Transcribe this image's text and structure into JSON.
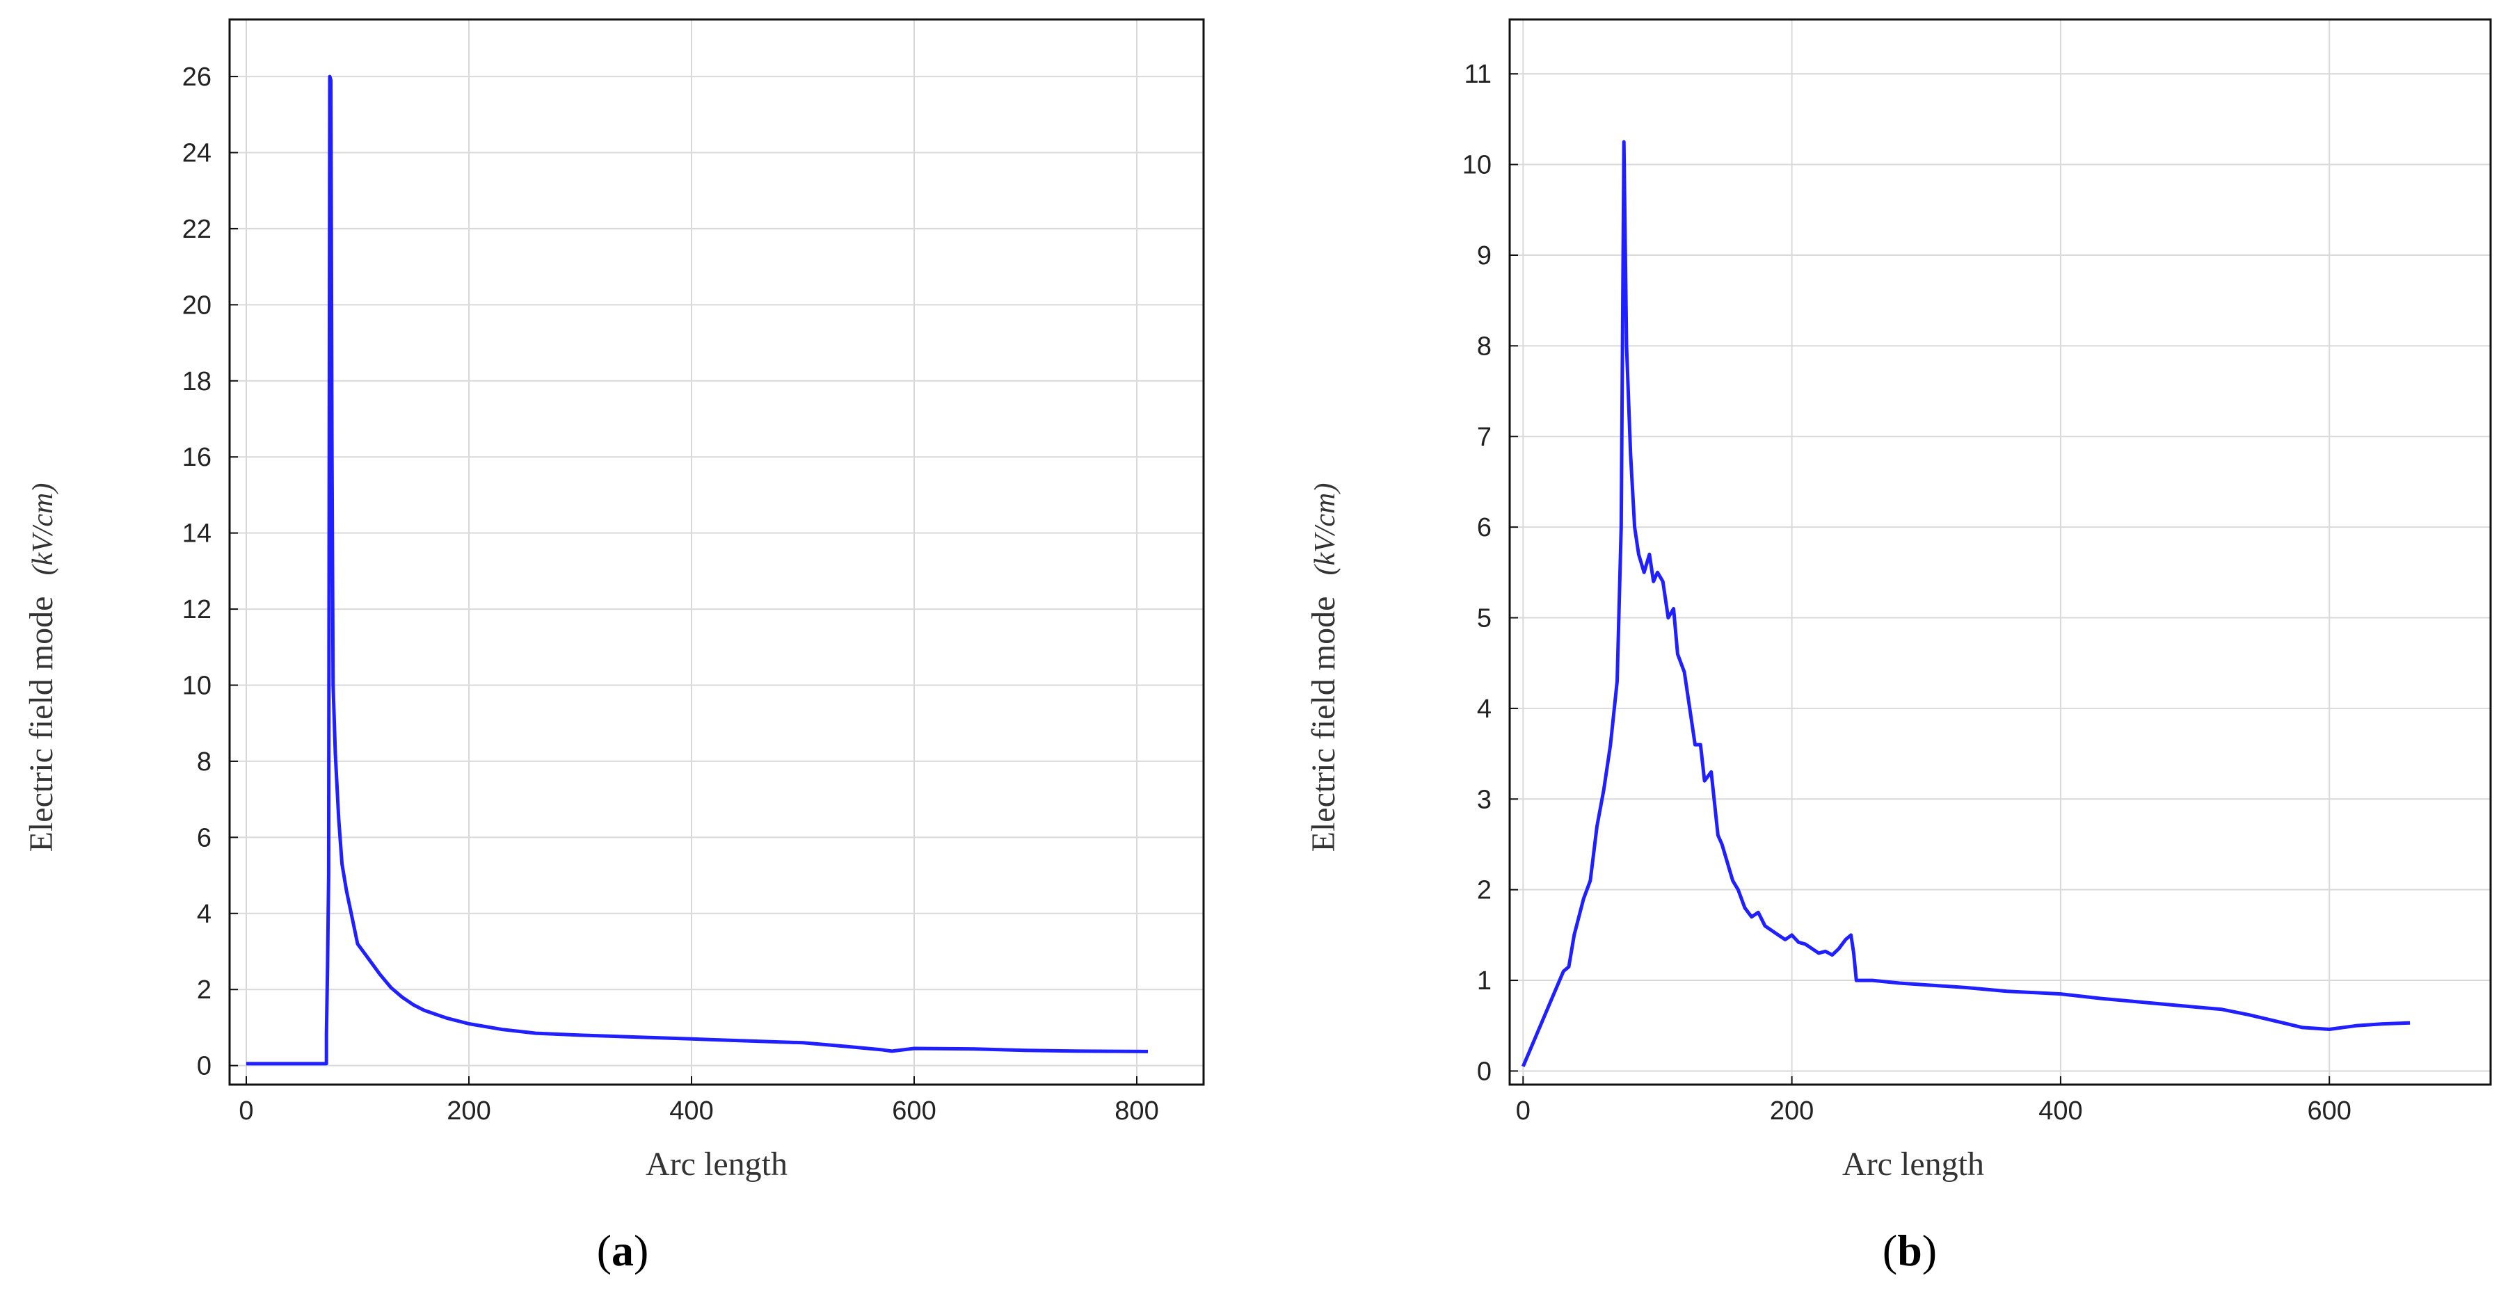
{
  "chart_data": [
    {
      "type": "line",
      "panel_label": "a",
      "xlabel": "Arc length",
      "ylabel": "Electric field mode",
      "ylabel_unit": "(kV/cm)",
      "xlim": [
        -15,
        860
      ],
      "ylim": [
        -0.5,
        27.5
      ],
      "xticks": [
        0,
        200,
        400,
        600,
        800
      ],
      "yticks": [
        0,
        2,
        4,
        6,
        8,
        10,
        12,
        14,
        16,
        18,
        20,
        22,
        24,
        26
      ],
      "grid": true,
      "line_color": "#1f1fff",
      "series": [
        {
          "x": [
            0,
            72,
            72,
            73,
            74,
            75,
            76,
            77,
            78,
            80,
            83,
            86,
            90,
            95,
            100,
            110,
            120,
            130,
            140,
            150,
            160,
            180,
            200,
            230,
            260,
            300,
            350,
            400,
            450,
            500,
            540,
            570,
            580,
            600,
            650,
            700,
            750,
            810
          ],
          "y": [
            0.05,
            0.05,
            0.8,
            2.6,
            5.0,
            26.0,
            25.9,
            16.0,
            10.0,
            8.2,
            6.5,
            5.3,
            4.6,
            3.9,
            3.2,
            2.8,
            2.4,
            2.05,
            1.8,
            1.6,
            1.45,
            1.25,
            1.1,
            0.95,
            0.85,
            0.8,
            0.75,
            0.7,
            0.65,
            0.6,
            0.5,
            0.42,
            0.38,
            0.45,
            0.44,
            0.4,
            0.38,
            0.37
          ]
        }
      ]
    },
    {
      "type": "line",
      "panel_label": "b",
      "xlabel": "Arc length",
      "ylabel": "Electric field mode",
      "ylabel_unit": "(kV/cm)",
      "xlim": [
        -10,
        720
      ],
      "ylim": [
        -0.15,
        11.6
      ],
      "xticks": [
        0,
        200,
        400,
        600
      ],
      "yticks": [
        0,
        1,
        2,
        3,
        4,
        5,
        6,
        7,
        8,
        9,
        10,
        11
      ],
      "grid": true,
      "line_color": "#1f1fff",
      "series": [
        {
          "x": [
            0,
            10,
            20,
            30,
            34,
            38,
            45,
            50,
            55,
            60,
            65,
            70,
            73,
            75,
            77,
            80,
            83,
            86,
            90,
            94,
            97,
            100,
            104,
            108,
            112,
            115,
            120,
            124,
            128,
            132,
            135,
            140,
            145,
            148,
            152,
            156,
            160,
            165,
            170,
            175,
            180,
            185,
            190,
            195,
            200,
            205,
            210,
            215,
            220,
            225,
            230,
            235,
            240,
            244,
            246,
            248,
            252,
            260,
            280,
            300,
            330,
            360,
            400,
            430,
            460,
            490,
            520,
            540,
            560,
            580,
            600,
            620,
            640,
            660
          ],
          "y": [
            0.05,
            0.4,
            0.75,
            1.1,
            1.15,
            1.5,
            1.9,
            2.1,
            2.7,
            3.1,
            3.6,
            4.3,
            6.0,
            10.25,
            8.0,
            6.8,
            6.0,
            5.7,
            5.5,
            5.7,
            5.4,
            5.5,
            5.4,
            5.0,
            5.1,
            4.6,
            4.4,
            4.0,
            3.6,
            3.6,
            3.2,
            3.3,
            2.6,
            2.5,
            2.3,
            2.1,
            2.0,
            1.8,
            1.7,
            1.75,
            1.6,
            1.55,
            1.5,
            1.45,
            1.5,
            1.42,
            1.4,
            1.35,
            1.3,
            1.32,
            1.28,
            1.35,
            1.45,
            1.5,
            1.3,
            1.0,
            1.0,
            1.0,
            0.97,
            0.95,
            0.92,
            0.88,
            0.85,
            0.8,
            0.76,
            0.72,
            0.68,
            0.62,
            0.55,
            0.48,
            0.46,
            0.5,
            0.52,
            0.53
          ]
        }
      ]
    }
  ]
}
